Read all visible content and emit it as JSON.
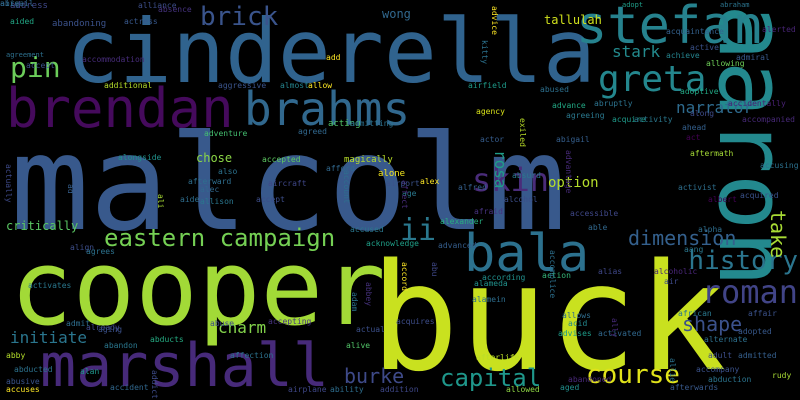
{
  "words": [
    {
      "text": "malcolm",
      "color": "#38598c"
    },
    {
      "text": "buck",
      "color": "#c9e11f"
    },
    {
      "text": "cooper",
      "color": "#a2da37"
    },
    {
      "text": "cinderella",
      "color": "#30638e"
    },
    {
      "text": "aaron",
      "color": "#23898e"
    },
    {
      "text": "marshall",
      "color": "#472a7a"
    },
    {
      "text": "brendan",
      "color": "#450a5c"
    },
    {
      "text": "bala",
      "color": "#2c718e"
    },
    {
      "text": "brahms",
      "color": "#31688e"
    },
    {
      "text": "stefan",
      "color": "#26828e"
    },
    {
      "text": "greta",
      "color": "#24878e"
    },
    {
      "text": "eastern campaign",
      "color": "#75d054"
    },
    {
      "text": "history",
      "color": "#2b758e"
    },
    {
      "text": "capital",
      "color": "#1f978b"
    },
    {
      "text": "course",
      "color": "#e0e31a"
    },
    {
      "text": "roman",
      "color": "#414487"
    },
    {
      "text": "shape",
      "color": "#3b518b"
    },
    {
      "text": "dimension",
      "color": "#34608d"
    },
    {
      "text": "burke",
      "color": "#3e4a89"
    },
    {
      "text": "pin",
      "color": "#6ccd5a"
    },
    {
      "text": "brick",
      "color": "#3a548c"
    },
    {
      "text": "ii",
      "color": "#2a788e"
    },
    {
      "text": "skin",
      "color": "#4a2c7a"
    },
    {
      "text": "charm",
      "color": "#83d34b"
    },
    {
      "text": "initiate",
      "color": "#2a768e"
    },
    {
      "text": "stark",
      "color": "#238a8d"
    },
    {
      "text": "narrator",
      "color": "#2e6b8e"
    },
    {
      "text": "take",
      "color": "#a8db34"
    },
    {
      "text": "rosa",
      "color": "#1f9e89"
    },
    {
      "text": "option",
      "color": "#b5de2b"
    },
    {
      "text": "chose",
      "color": "#8bd646"
    },
    {
      "text": "critically",
      "color": "#5ac864"
    },
    {
      "text": "alliance",
      "color": "#3d4e8a"
    },
    {
      "text": "wong",
      "color": "#31688e"
    },
    {
      "text": "tallulah",
      "color": "#d0e11c"
    },
    {
      "text": "abraham",
      "color": "#2b748e"
    },
    {
      "text": "address",
      "color": "#3f4889"
    },
    {
      "text": "aided",
      "color": "#22a785"
    },
    {
      "text": "abandoning",
      "color": "#3b528b"
    },
    {
      "text": "actress",
      "color": "#38588c"
    },
    {
      "text": "absence",
      "color": "#46337f"
    },
    {
      "text": "accommodation",
      "color": "#472c7a"
    },
    {
      "text": "agreement",
      "color": "#2d708e"
    },
    {
      "text": "accept",
      "color": "#3b528b"
    },
    {
      "text": "additional",
      "color": "#b5de2b"
    },
    {
      "text": "aggressive",
      "color": "#3a548c"
    },
    {
      "text": "almost",
      "color": "#25848e"
    },
    {
      "text": "allow",
      "color": "#fde725"
    },
    {
      "text": "airfield",
      "color": "#1e9b8a"
    },
    {
      "text": "abused",
      "color": "#2d708e"
    },
    {
      "text": "advance",
      "color": "#22a884"
    },
    {
      "text": "abruptly",
      "color": "#2c738e"
    },
    {
      "text": "acquire",
      "color": "#1f9a8a"
    },
    {
      "text": "adoptive",
      "color": "#22a884"
    },
    {
      "text": "acquaintance",
      "color": "#34618d"
    },
    {
      "text": "active",
      "color": "#3b528b"
    },
    {
      "text": "achieve",
      "color": "#25848e"
    },
    {
      "text": "allowing",
      "color": "#6ece58"
    },
    {
      "text": "alerted",
      "color": "#482475"
    },
    {
      "text": "admiral",
      "color": "#38598c"
    },
    {
      "text": "adopt",
      "color": "#1f9e89"
    },
    {
      "text": "agency",
      "color": "#d8e219"
    },
    {
      "text": "agreeing",
      "color": "#2a788e"
    },
    {
      "text": "acting",
      "color": "#52c569"
    },
    {
      "text": "admitting",
      "color": "#2c728e"
    },
    {
      "text": "agreed",
      "color": "#31688e"
    },
    {
      "text": "adventure",
      "color": "#44bf70"
    },
    {
      "text": "actor",
      "color": "#365d8d"
    },
    {
      "text": "abigail",
      "color": "#355f8d"
    },
    {
      "text": "activity",
      "color": "#2a788e"
    },
    {
      "text": "along",
      "color": "#3e4c8a"
    },
    {
      "text": "ahead",
      "color": "#34608d"
    },
    {
      "text": "act",
      "color": "#440154"
    },
    {
      "text": "accidentally",
      "color": "#482173"
    },
    {
      "text": "accompanied",
      "color": "#482979"
    },
    {
      "text": "alongside",
      "color": "#20928c"
    },
    {
      "text": "accepted",
      "color": "#5ec962"
    },
    {
      "text": "magically",
      "color": "#b8de29"
    },
    {
      "text": "alone",
      "color": "#f1e51d"
    },
    {
      "text": "alex",
      "color": "#fde725"
    },
    {
      "text": "alfred",
      "color": "#34608d"
    },
    {
      "text": "also",
      "color": "#2c728e"
    },
    {
      "text": "afterward",
      "color": "#2e6e8e"
    },
    {
      "text": "alec",
      "color": "#31688e"
    },
    {
      "text": "aircraft",
      "color": "#3f4788"
    },
    {
      "text": "allison",
      "color": "#2a768e"
    },
    {
      "text": "aftermath",
      "color": "#a5db36"
    },
    {
      "text": "activist",
      "color": "#2e6f8e"
    },
    {
      "text": "albert",
      "color": "#440154"
    },
    {
      "text": "acquired",
      "color": "#3b528b"
    },
    {
      "text": "accusing",
      "color": "#2c718e"
    },
    {
      "text": "alcohol",
      "color": "#3c4f8a"
    },
    {
      "text": "afraid",
      "color": "#46327e"
    },
    {
      "text": "alexander",
      "color": "#28ae80"
    },
    {
      "text": "accused",
      "color": "#2a778e"
    },
    {
      "text": "acknowledge",
      "color": "#1fa088"
    },
    {
      "text": "advanced",
      "color": "#355e8d"
    },
    {
      "text": "according",
      "color": "#21908d"
    },
    {
      "text": "alias",
      "color": "#3f4788"
    },
    {
      "text": "alcoholic",
      "color": "#482677"
    },
    {
      "text": "action",
      "color": "#35b779"
    },
    {
      "text": "alameda",
      "color": "#21918c"
    },
    {
      "text": "alamein",
      "color": "#2e6e8e"
    },
    {
      "text": "allows",
      "color": "#2f6c8e"
    },
    {
      "text": "acid",
      "color": "#23888e"
    },
    {
      "text": "advises",
      "color": "#1e9c89"
    },
    {
      "text": "activated",
      "color": "#31688e"
    },
    {
      "text": "acquires",
      "color": "#3d4d8a"
    },
    {
      "text": "actual",
      "color": "#3c508b"
    },
    {
      "text": "alive",
      "color": "#52c569"
    },
    {
      "text": "afterlife",
      "color": "#bade28"
    },
    {
      "text": "allowed",
      "color": "#8fd744"
    },
    {
      "text": "addition",
      "color": "#3f4889"
    },
    {
      "text": "ability",
      "color": "#2e6e8e"
    },
    {
      "text": "airplane",
      "color": "#3f4889"
    },
    {
      "text": "abandoned",
      "color": "#482878"
    },
    {
      "text": "aged",
      "color": "#21908d"
    },
    {
      "text": "abducted",
      "color": "#2c728e"
    },
    {
      "text": "abby",
      "color": "#b5de2b"
    },
    {
      "text": "abusive",
      "color": "#3a548c"
    },
    {
      "text": "accuses",
      "color": "#fde725"
    },
    {
      "text": "accident",
      "color": "#31688e"
    },
    {
      "text": "addict",
      "color": "#3e4c8a"
    },
    {
      "text": "affection",
      "color": "#2c728e"
    },
    {
      "text": "abducts",
      "color": "#25ab82"
    },
    {
      "text": "abandon",
      "color": "#2a778e"
    },
    {
      "text": "alan",
      "color": "#1f968b"
    },
    {
      "text": "already",
      "color": "#3f4889"
    },
    {
      "text": "admit",
      "color": "#2e6e8e"
    },
    {
      "text": "accepting",
      "color": "#46337f"
    },
    {
      "text": "abuse",
      "color": "#3e4a89"
    },
    {
      "text": "african",
      "color": "#2a788e"
    },
    {
      "text": "affair",
      "color": "#3b528b"
    },
    {
      "text": "alternate",
      "color": "#2d708e"
    },
    {
      "text": "adopted",
      "color": "#38598c"
    },
    {
      "text": "adult",
      "color": "#3d4e8a"
    },
    {
      "text": "admitted",
      "color": "#355f8d"
    },
    {
      "text": "rudy",
      "color": "#a8db34"
    },
    {
      "text": "abduction",
      "color": "#2b748e"
    },
    {
      "text": "afterwards",
      "color": "#38598c"
    },
    {
      "text": "accompany",
      "color": "#3b528b"
    },
    {
      "text": "allie",
      "color": "#2c728e"
    },
    {
      "text": "ally",
      "color": "#472a7a"
    },
    {
      "text": "air",
      "color": "#3e4a89"
    },
    {
      "text": "aang",
      "color": "#2a778e"
    },
    {
      "text": "alpha",
      "color": "#2e6e8e"
    },
    {
      "text": "able",
      "color": "#31688e"
    },
    {
      "text": "exiled",
      "color": "#bade28"
    },
    {
      "text": "advice",
      "color": "#fde725"
    },
    {
      "text": "kitty",
      "color": "#2c728e"
    },
    {
      "text": "add",
      "color": "#fde725"
    },
    {
      "text": "actually",
      "color": "#3e4a89"
    },
    {
      "text": "ad",
      "color": "#355f8d"
    },
    {
      "text": "aide",
      "color": "#2e6e8e"
    },
    {
      "text": "ali",
      "color": "#a8db34"
    },
    {
      "text": "align",
      "color": "#3d4e8a"
    },
    {
      "text": "activates",
      "color": "#2a788e"
    },
    {
      "text": "abbey",
      "color": "#46327e"
    },
    {
      "text": "adam",
      "color": "#2c728e"
    },
    {
      "text": "afford",
      "color": "#31688e"
    },
    {
      "text": "account",
      "color": "#2e6e8e"
    },
    {
      "text": "age",
      "color": "#2a788e"
    },
    {
      "text": "affect",
      "color": "#472c7a"
    },
    {
      "text": "airport",
      "color": "#3b528b"
    },
    {
      "text": "accord",
      "color": "#fde725"
    },
    {
      "text": "abu",
      "color": "#3f4889"
    },
    {
      "text": "accomplice",
      "color": "#2d708e"
    },
    {
      "text": "aging",
      "color": "#3b528b"
    },
    {
      "text": "agrees",
      "color": "#2c728e"
    },
    {
      "text": "advantage",
      "color": "#472a7a"
    },
    {
      "text": "accessible",
      "color": "#3f4889"
    },
    {
      "text": "absurd",
      "color": "#2a788e"
    },
    {
      "text": "accept",
      "color": "#3d4e8a"
    },
    {
      "text": "airs",
      "color": "#2e6e8e"
    },
    {
      "text": "abigail",
      "color": "#31688e"
    }
  ]
}
